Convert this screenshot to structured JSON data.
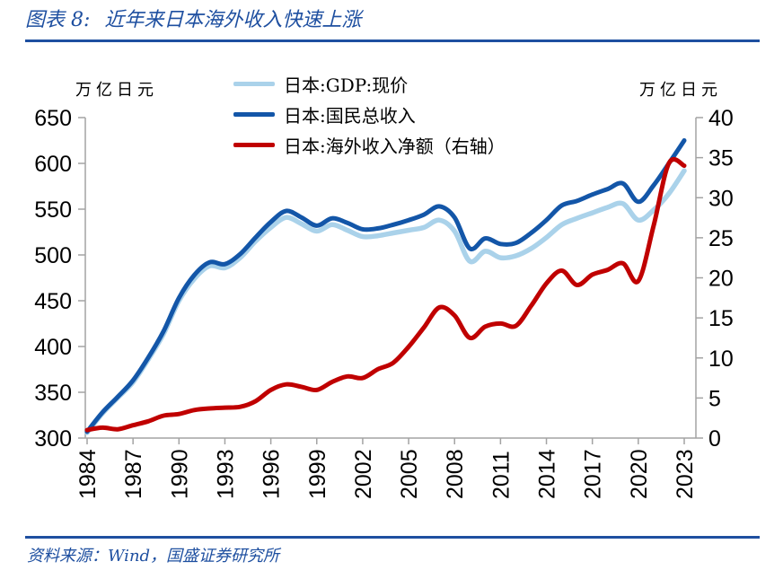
{
  "header": {
    "figure_label": "图表 8:",
    "title": "近年来日本海外收入快速上涨"
  },
  "chart": {
    "left_axis_unit": "万亿日元",
    "right_axis_unit": "万亿日元",
    "legend": [
      {
        "label": "日本:GDP:现价"
      },
      {
        "label": "日本:国民总收入"
      },
      {
        "label": "日本:海外收入净额（右轴）"
      }
    ]
  },
  "chart_data": {
    "type": "line",
    "title": "近年来日本海外收入快速上涨",
    "x": [
      1984,
      1985,
      1986,
      1987,
      1988,
      1989,
      1990,
      1991,
      1992,
      1993,
      1994,
      1995,
      1996,
      1997,
      1998,
      1999,
      2000,
      2001,
      2002,
      2003,
      2004,
      2005,
      2006,
      2007,
      2008,
      2009,
      2010,
      2011,
      2012,
      2013,
      2014,
      2015,
      2016,
      2017,
      2018,
      2019,
      2020,
      2021,
      2022,
      2023
    ],
    "x_tick_step": 3,
    "series": [
      {
        "name": "日本:GDP:现价",
        "axis": "left",
        "color": "#aad2ea",
        "values": [
          306,
          327,
          344,
          361,
          386,
          414,
          450,
          474,
          488,
          486,
          497,
          515,
          530,
          541,
          534,
          526,
          533,
          527,
          520,
          521,
          524,
          527,
          530,
          538,
          526,
          493,
          504,
          497,
          499,
          507,
          519,
          533,
          540,
          546,
          552,
          556,
          538,
          549,
          567,
          592
        ]
      },
      {
        "name": "日本:国民总收入",
        "axis": "left",
        "color": "#1356a8",
        "values": [
          307,
          328,
          345,
          363,
          388,
          417,
          453,
          478,
          492,
          490,
          501,
          519,
          536,
          548,
          541,
          532,
          540,
          535,
          528,
          529,
          533,
          538,
          544,
          553,
          541,
          507,
          518,
          512,
          513,
          524,
          538,
          554,
          559,
          566,
          572,
          578,
          558,
          576,
          600,
          625
        ]
      },
      {
        "name": "日本:海外收入净额（右轴）",
        "axis": "right",
        "color": "#c00000",
        "values": [
          1.0,
          1.3,
          1.1,
          1.6,
          2.1,
          2.8,
          3.0,
          3.5,
          3.7,
          3.8,
          3.9,
          4.6,
          6.0,
          6.7,
          6.4,
          6.0,
          7.0,
          7.7,
          7.5,
          8.6,
          9.4,
          11.4,
          13.8,
          16.3,
          15.3,
          12.5,
          13.9,
          14.3,
          14.0,
          16.5,
          19.3,
          20.9,
          19.1,
          20.4,
          21.0,
          21.8,
          19.6,
          26.5,
          34.3,
          34.0
        ]
      }
    ],
    "left_axis": {
      "min": 300,
      "max": 650,
      "tick_step": 50,
      "unit": "万亿日元"
    },
    "right_axis": {
      "min": 0,
      "max": 40,
      "tick_step": 5,
      "unit": "万亿日元"
    },
    "grid": false,
    "legend_position": "top-center"
  },
  "footer": {
    "source": "资料来源：Wind，国盛证券研究所"
  },
  "colors": {
    "accent_blue": "#1e4fa0",
    "axis_gray": "#a3a3a3",
    "text_black": "#000000"
  }
}
